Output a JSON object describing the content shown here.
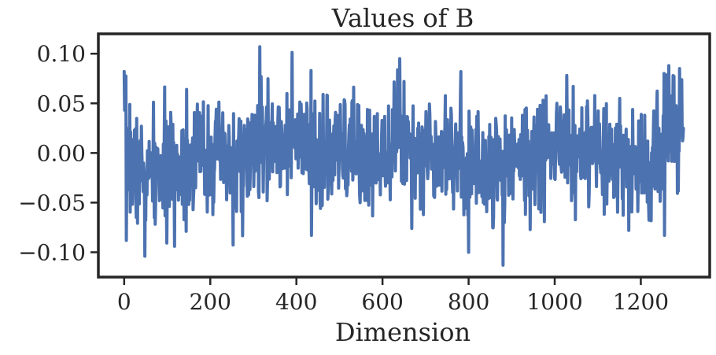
{
  "chart_data": {
    "type": "line",
    "title": "Values of B",
    "xlabel": "Dimension",
    "ylabel": "",
    "xlim": [
      -60,
      1360
    ],
    "ylim": [
      -0.125,
      0.12
    ],
    "xticks": [
      0,
      200,
      400,
      600,
      800,
      1000,
      1200
    ],
    "xtick_labels": [
      "0",
      "200",
      "400",
      "600",
      "800",
      "1000",
      "1200"
    ],
    "yticks": [
      0.1,
      0.05,
      0.0,
      -0.05,
      -0.1
    ],
    "ytick_labels": [
      "0.10",
      "0.05",
      "0.00",
      "−0.05",
      "−0.10"
    ],
    "grid": false,
    "legend": "none",
    "series": [
      {
        "color": "#4c72b0",
        "x_start": 0,
        "x_step": 1,
        "count": 1300,
        "seed": 7,
        "noise_std": 0.028,
        "noise_clip": 0.105,
        "trend_x": [
          0,
          20,
          60,
          100,
          140,
          180,
          220,
          260,
          300,
          340,
          380,
          420,
          460,
          500,
          540,
          580,
          620,
          660,
          700,
          740,
          780,
          820,
          860,
          900,
          940,
          980,
          1020,
          1060,
          1100,
          1140,
          1180,
          1220,
          1260,
          1299
        ],
        "trend_y": [
          0.02,
          -0.015,
          -0.025,
          -0.02,
          -0.01,
          0.0,
          -0.005,
          -0.015,
          0.0,
          0.01,
          0.02,
          0.0,
          -0.01,
          0.0,
          0.0,
          -0.005,
          0.015,
          0.01,
          0.0,
          0.01,
          -0.005,
          -0.015,
          -0.02,
          0.0,
          -0.005,
          0.0,
          0.01,
          -0.005,
          -0.005,
          -0.01,
          -0.015,
          -0.01,
          0.015,
          0.025
        ],
        "peaks": [
          {
            "x": 0,
            "y": 0.082
          },
          {
            "x": 5,
            "y": -0.088
          },
          {
            "x": 48,
            "y": -0.104
          },
          {
            "x": 145,
            "y": 0.064
          },
          {
            "x": 315,
            "y": 0.107
          },
          {
            "x": 435,
            "y": -0.083
          },
          {
            "x": 640,
            "y": 0.095
          },
          {
            "x": 800,
            "y": -0.1
          },
          {
            "x": 880,
            "y": -0.113
          },
          {
            "x": 1005,
            "y": 0.05
          },
          {
            "x": 1255,
            "y": -0.083
          },
          {
            "x": 1265,
            "y": 0.088
          },
          {
            "x": 1290,
            "y": 0.085
          },
          {
            "x": 1298,
            "y": 0.016
          }
        ]
      }
    ]
  }
}
